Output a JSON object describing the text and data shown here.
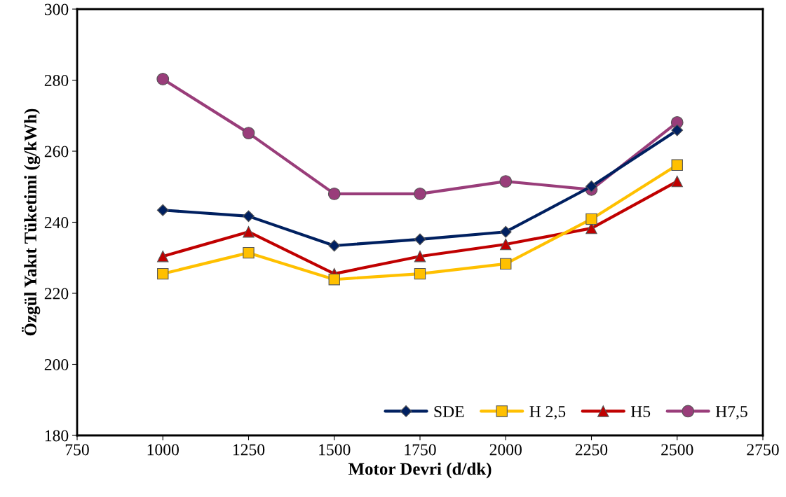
{
  "chart_data": {
    "type": "line",
    "xlabel": "Motor Devri (d/dk)",
    "ylabel": "Özgül Yakıt Tüketimi (g/kWh)",
    "x": [
      1000,
      1250,
      1500,
      1750,
      2000,
      2250,
      2500
    ],
    "xlim": [
      750,
      2750
    ],
    "xticks": [
      750,
      1000,
      1250,
      1500,
      1750,
      2000,
      2250,
      2500,
      2750
    ],
    "ylim": [
      180,
      300
    ],
    "yticks": [
      180,
      200,
      220,
      240,
      260,
      280,
      300
    ],
    "grid": false,
    "legend": "bottom right",
    "line_style": "solid",
    "series": [
      {
        "name": "SDE",
        "color": "#002060",
        "marker": "diamond",
        "values": [
          243.4,
          241.7,
          233.4,
          235.2,
          237.3,
          250.1,
          265.9
        ]
      },
      {
        "name": "H 2,5",
        "color": "#ffc000",
        "marker": "square",
        "values": [
          225.5,
          231.4,
          223.9,
          225.5,
          228.3,
          240.9,
          256.1
        ]
      },
      {
        "name": "H5",
        "color": "#c00000",
        "marker": "triangle",
        "values": [
          230.4,
          237.3,
          225.5,
          230.4,
          233.8,
          238.3,
          251.5
        ]
      },
      {
        "name": "H7,5",
        "color": "#993d7a",
        "marker": "circle",
        "values": [
          280.3,
          265.1,
          248.0,
          248.0,
          251.5,
          249.2,
          268.1
        ]
      }
    ]
  }
}
